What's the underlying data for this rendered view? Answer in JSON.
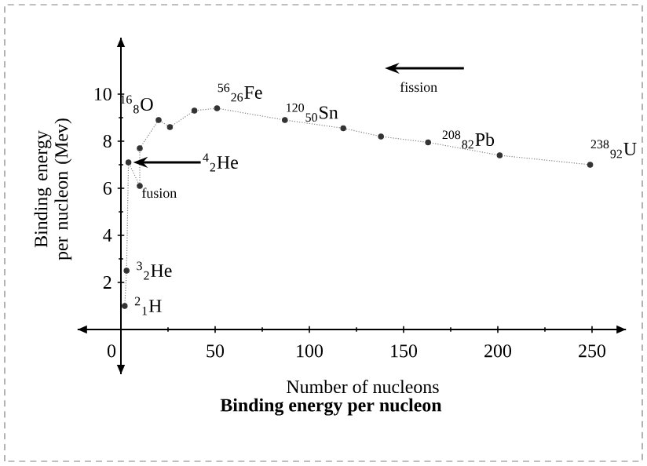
{
  "chart_data": {
    "type": "line",
    "title": "Binding energy per nucleon",
    "xlabel": "Number of nucleons",
    "ylabel": "Binding energy per nucleon (Mev)",
    "xlim": [
      -23,
      268
    ],
    "ylim": [
      -1.9,
      12.4
    ],
    "xticks": [
      0,
      50,
      100,
      150,
      200,
      250
    ],
    "yticks": [
      2,
      4,
      6,
      8,
      10
    ],
    "marker": "circle",
    "line_style": "dotted",
    "grid": false,
    "series": [
      {
        "color": "#333333",
        "x": [
          2,
          3,
          4,
          10,
          10,
          20,
          26,
          39,
          51,
          87,
          118,
          138,
          163,
          201,
          249
        ],
        "values": [
          1.0,
          2.5,
          7.1,
          6.1,
          7.7,
          8.9,
          8.6,
          9.3,
          9.4,
          8.9,
          8.55,
          8.2,
          7.95,
          7.4,
          7.0
        ]
      }
    ],
    "annotations": [
      {
        "text": "$^{2}$$_{1}$H",
        "x": 2,
        "y": 1.0
      },
      {
        "text": "$^{3}$$_{2}$He",
        "x": 3,
        "y": 2.5
      },
      {
        "text": "$^{4}$$_{2}$He",
        "x": 4,
        "y": 7.1
      },
      {
        "text": "$^{16}$$_{8}$O",
        "x": 20,
        "y": 8.9
      },
      {
        "text": "$^{56}$$_{26}$Fe",
        "x": 51,
        "y": 9.4
      },
      {
        "text": "$^{120}$$_{50}$Sn",
        "x": 118,
        "y": 8.55
      },
      {
        "text": "$^{208}$$_{82}$Pb",
        "x": 201,
        "y": 7.4
      },
      {
        "text": "$^{238}$$_{92}$U",
        "x": 249,
        "y": 7.0
      },
      "fusion",
      "fission"
    ]
  }
}
